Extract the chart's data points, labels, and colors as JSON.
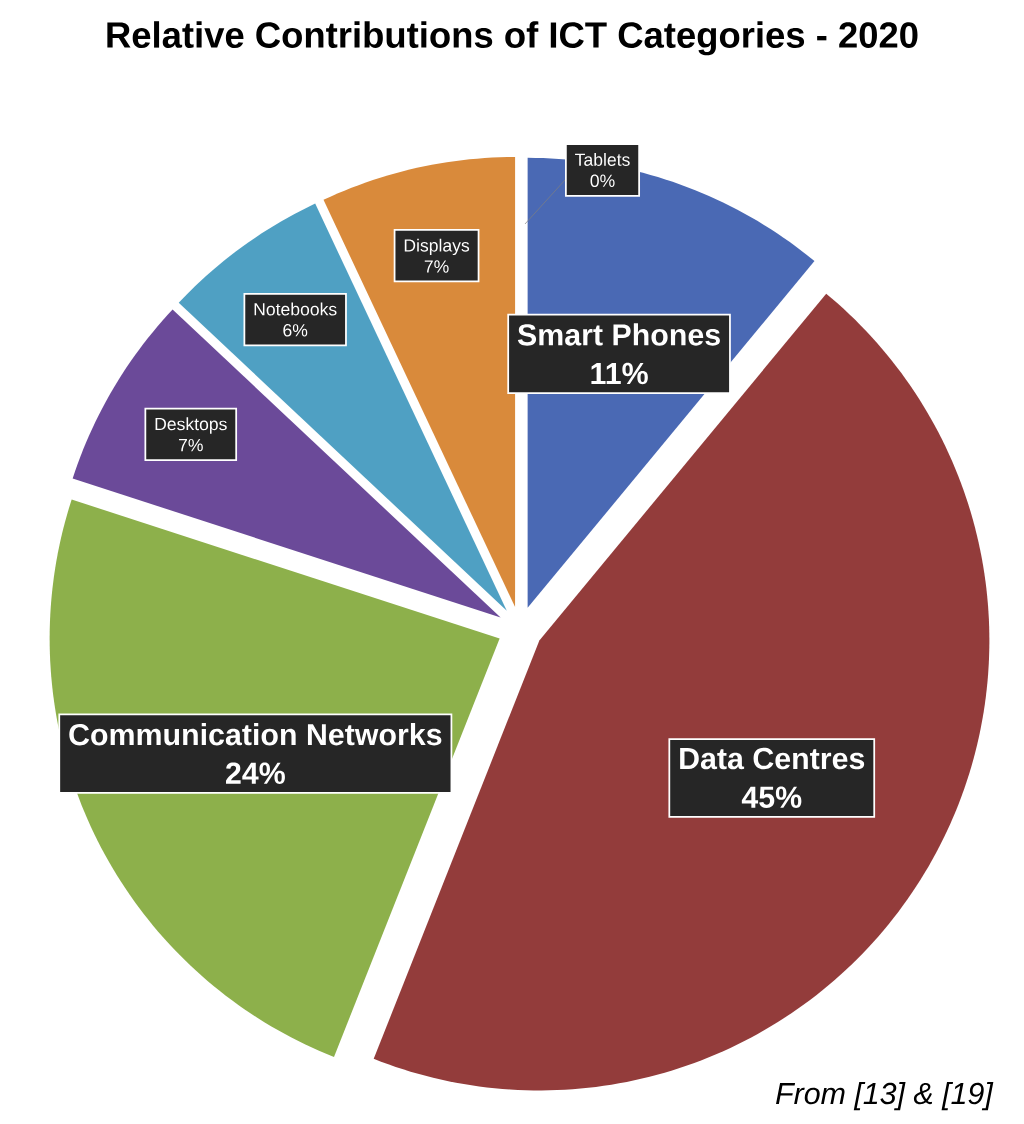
{
  "chart_data": {
    "type": "pie",
    "title": "Relative Contributions of ICT Categories - 2020",
    "categories": [
      "Smart Phones",
      "Data Centres",
      "Communication Networks",
      "Desktops",
      "Notebooks",
      "Displays",
      "Tablets"
    ],
    "values": [
      11,
      45,
      24,
      7,
      6,
      7,
      0
    ],
    "value_labels": [
      "11%",
      "45%",
      "24%",
      "7%",
      "6%",
      "7%",
      "0%"
    ],
    "colors": [
      "#4a69b4",
      "#933c3b",
      "#8db04b",
      "#6b4a99",
      "#4fa0c3",
      "#d98a3b",
      "#1f2f70"
    ],
    "annotations": [
      "From [13] & [19]"
    ]
  }
}
